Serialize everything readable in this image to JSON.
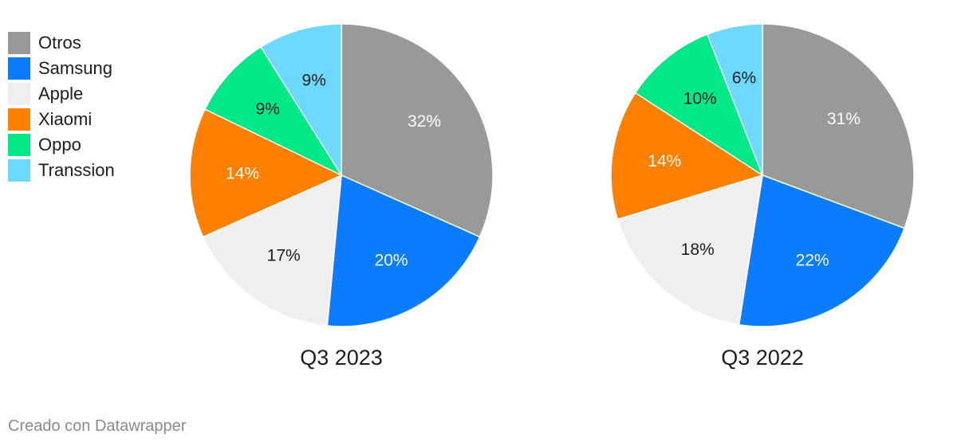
{
  "chart_data": [
    {
      "type": "pie",
      "title": "Q3 2023",
      "categories": [
        "Otros",
        "Samsung",
        "Apple",
        "Xiaomi",
        "Oppo",
        "Transsion"
      ],
      "values": [
        32,
        20,
        17,
        14,
        9,
        9
      ],
      "labels": [
        "32%",
        "20%",
        "17%",
        "14%",
        "9%",
        "9%"
      ]
    },
    {
      "type": "pie",
      "title": "Q3 2022",
      "categories": [
        "Otros",
        "Samsung",
        "Apple",
        "Xiaomi",
        "Oppo",
        "Transsion"
      ],
      "values": [
        31,
        22,
        18,
        14,
        10,
        6
      ],
      "labels": [
        "31%",
        "22%",
        "18%",
        "14%",
        "10%",
        "6%"
      ]
    }
  ],
  "legend": [
    {
      "label": "Otros",
      "color": "#999999"
    },
    {
      "label": "Samsung",
      "color": "#0a7cfd"
    },
    {
      "label": "Apple",
      "color": "#efefef"
    },
    {
      "label": "Xiaomi",
      "color": "#ff7f00"
    },
    {
      "label": "Oppo",
      "color": "#00e887"
    },
    {
      "label": "Transsion",
      "color": "#6ed9ff"
    }
  ],
  "label_colors": [
    "#ffffff",
    "#ffffff",
    "#1d1d1d",
    "#ffffff",
    "#1d1d1d",
    "#1d1d1d"
  ],
  "footer": {
    "credit": "Creado con Datawrapper"
  }
}
